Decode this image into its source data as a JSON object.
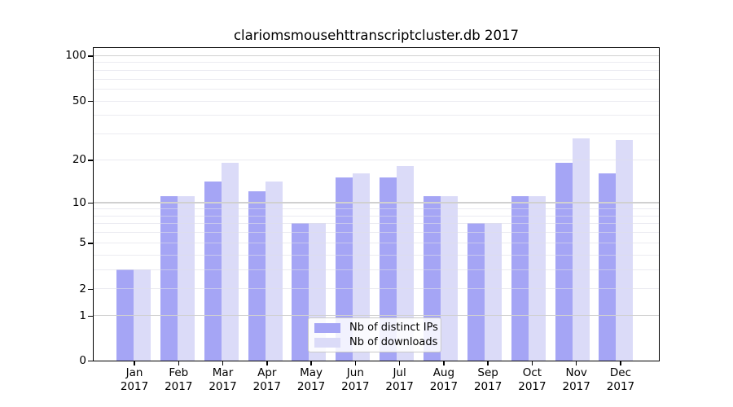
{
  "title": {
    "text": "clariomsmousehttranscriptcluster.db 2017"
  },
  "chart_data": {
    "type": "bar",
    "title": "clariomsmousehttranscriptcluster.db 2017",
    "categories": [
      "Jan 2017",
      "Feb 2017",
      "Mar 2017",
      "Apr 2017",
      "May 2017",
      "Jun 2017",
      "Jul 2017",
      "Aug 2017",
      "Sep 2017",
      "Oct 2017",
      "Nov 2017",
      "Dec 2017"
    ],
    "x_tick_labels": [
      {
        "month": "Jan",
        "year": "2017"
      },
      {
        "month": "Feb",
        "year": "2017"
      },
      {
        "month": "Mar",
        "year": "2017"
      },
      {
        "month": "Apr",
        "year": "2017"
      },
      {
        "month": "May",
        "year": "2017"
      },
      {
        "month": "Jun",
        "year": "2017"
      },
      {
        "month": "Jul",
        "year": "2017"
      },
      {
        "month": "Aug",
        "year": "2017"
      },
      {
        "month": "Sep",
        "year": "2017"
      },
      {
        "month": "Oct",
        "year": "2017"
      },
      {
        "month": "Nov",
        "year": "2017"
      },
      {
        "month": "Dec",
        "year": "2017"
      }
    ],
    "series": [
      {
        "name": "Nb of distinct IPs",
        "color": "#a5a5f5",
        "values": [
          3,
          11,
          14,
          12,
          7,
          15,
          15,
          11,
          7,
          11,
          19,
          16
        ]
      },
      {
        "name": "Nb of downloads",
        "color": "#dbdbf8",
        "values": [
          3,
          11,
          19,
          14,
          7,
          16,
          18,
          11,
          7,
          11,
          28,
          27
        ]
      }
    ],
    "y_axis": {
      "scale": "log1p",
      "ylim": [
        0,
        100
      ],
      "tick_values": [
        0,
        1,
        2,
        5,
        10,
        20,
        50,
        100
      ],
      "tick_labels": [
        "0",
        "1",
        "2",
        "5",
        "10",
        "20",
        "50",
        "100"
      ],
      "major_grid_values": [
        1,
        10,
        100
      ],
      "minor_grid_values": [
        2,
        3,
        4,
        5,
        6,
        7,
        8,
        9,
        20,
        30,
        40,
        50,
        60,
        70,
        80,
        90
      ]
    },
    "xlabel": "",
    "ylabel": "",
    "grid": true,
    "legend_position": "inside-bottom-center",
    "legend": {
      "entries": [
        {
          "label": "Nb of distinct IPs",
          "color": "#a5a5f5"
        },
        {
          "label": "Nb of downloads",
          "color": "#dbdbf8"
        }
      ]
    }
  },
  "colors": {
    "background": "#ffffff",
    "bar_distinct_ips": "#a5a5f5",
    "bar_downloads": "#dbdbf8",
    "grid_major": "#d0d0d0",
    "grid_minor": "#dddde7",
    "spine": "#000000",
    "text": "#000000",
    "legend_border": "#c9c9c9"
  }
}
